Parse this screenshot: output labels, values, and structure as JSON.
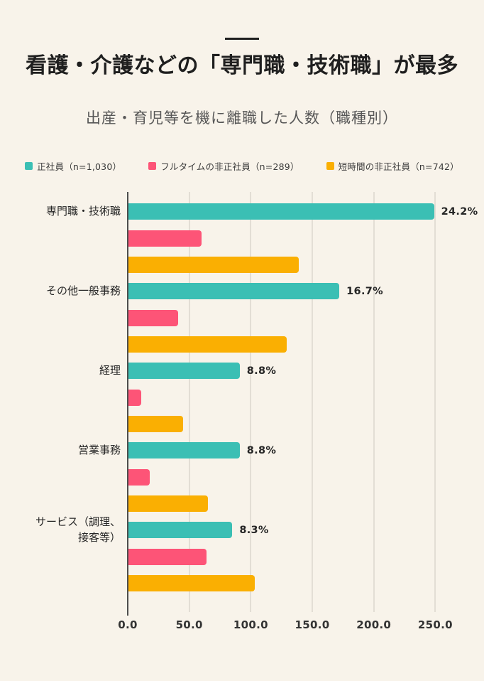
{
  "page": {
    "title": "看護・介護などの「専門職・技術職」が最多",
    "subtitle": "出産・育児等を機に離職した人数（職種別）"
  },
  "colors": {
    "background": "#f8f3ea",
    "title_text": "#1f1f1f",
    "subtitle_text": "#575757",
    "gridline": "#e3ded5",
    "axis_line": "#4d4d4d",
    "teal": "#3bbfb4",
    "pink": "#fd5477",
    "yellow": "#faaf02"
  },
  "legend": [
    {
      "label": "正社員（n=1,030）",
      "color": "#3bbfb4"
    },
    {
      "label": "フルタイムの非正社員（n=289）",
      "color": "#fd5477"
    },
    {
      "label": "短時間の非正社員（n=742）",
      "color": "#faaf02"
    }
  ],
  "chart_data": {
    "type": "bar",
    "orientation": "horizontal",
    "title": "看護・介護などの「専門職・技術職」が最多",
    "subtitle": "出産・育児等を機に離職した人数（職種別）",
    "categories": [
      "専門職・技術職",
      "その他一般事務",
      "経理",
      "営業事務",
      "サービス（調理、接客等）"
    ],
    "category_display_labels": [
      "専門職・技術職",
      "その他一般事務",
      "経理",
      "営業事務",
      "サービス（調理、\n接客等）"
    ],
    "series": [
      {
        "name": "正社員（n=1,030）",
        "color": "#3bbfb4",
        "values": [
          249,
          172,
          91,
          91,
          85
        ],
        "annotations": [
          "24.2%",
          "16.7%",
          "8.8%",
          "8.8%",
          "8.3%"
        ]
      },
      {
        "name": "フルタイムの非正社員（n=289）",
        "color": "#fd5477",
        "values": [
          60,
          41,
          11,
          18,
          64
        ],
        "annotations": [
          "",
          "",
          "",
          "",
          ""
        ]
      },
      {
        "name": "短時間の非正社員（n=742）",
        "color": "#faaf02",
        "values": [
          139,
          129,
          45,
          65,
          103
        ],
        "annotations": [
          "",
          "",
          "",
          "",
          ""
        ]
      }
    ],
    "xlim": [
      0,
      281.5
    ],
    "xticks": [
      0,
      50,
      100,
      150,
      200,
      250
    ],
    "xtick_labels": [
      "0.0",
      "50.0",
      "100.0",
      "150.0",
      "200.0",
      "250.0"
    ],
    "grid": "vertical",
    "legend_position": "top"
  }
}
